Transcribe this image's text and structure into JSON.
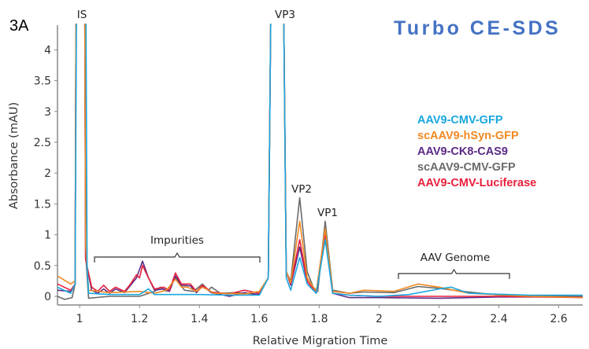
{
  "panel_label": "3A",
  "chart_data": {
    "type": "line",
    "title": "Turbo CE-SDS",
    "xlabel": "Relative Migration Time",
    "ylabel": "Absorbance (mAU)",
    "xlim": [
      0.926,
      2.68
    ],
    "ylim": [
      -0.14,
      4.4
    ],
    "xticks": [
      1,
      1.2,
      1.4,
      1.6,
      1.8,
      2,
      2.2,
      2.4,
      2.6
    ],
    "xtick_labels": [
      "1",
      "1.2",
      "1.4",
      "1.6",
      "1.8",
      "2",
      "2.2",
      "2.4",
      "2.6"
    ],
    "yticks": [
      0,
      0.5,
      1,
      1.5,
      2,
      2.5,
      3,
      3.5,
      4
    ],
    "ytick_labels": [
      "0",
      "0.5",
      "1",
      "1.5",
      "2",
      "2.5",
      "3",
      "3.5",
      "4"
    ],
    "grid": false,
    "legend_position": "right",
    "annotations": {
      "is": "IS",
      "vp3": "VP3",
      "vp2": "VP2",
      "vp1": "VP1",
      "impurities": "Impurities",
      "genome": "AAV Genome"
    },
    "series": [
      {
        "name": "scAAV9-CMV-GFP",
        "color": "#6b6b6b",
        "points": [
          [
            0.926,
            0.0
          ],
          [
            0.95,
            -0.05
          ],
          [
            0.975,
            -0.02
          ],
          [
            0.985,
            0.2
          ],
          [
            0.99,
            8
          ],
          [
            1.015,
            8
          ],
          [
            1.02,
            0.7
          ],
          [
            1.03,
            -0.03
          ],
          [
            1.1,
            0.0
          ],
          [
            1.2,
            0.0
          ],
          [
            1.25,
            0.08
          ],
          [
            1.27,
            0.15
          ],
          [
            1.29,
            0.08
          ],
          [
            1.32,
            0.3
          ],
          [
            1.35,
            0.1
          ],
          [
            1.38,
            0.08
          ],
          [
            1.41,
            0.2
          ],
          [
            1.43,
            0.1
          ],
          [
            1.44,
            0.15
          ],
          [
            1.47,
            0.05
          ],
          [
            1.52,
            0.06
          ],
          [
            1.6,
            0.03
          ],
          [
            1.63,
            0.3
          ],
          [
            1.645,
            8
          ],
          [
            1.675,
            8
          ],
          [
            1.69,
            0.4
          ],
          [
            1.705,
            0.25
          ],
          [
            1.735,
            1.6
          ],
          [
            1.76,
            0.4
          ],
          [
            1.78,
            0.15
          ],
          [
            1.795,
            0.08
          ],
          [
            1.82,
            1.22
          ],
          [
            1.845,
            0.1
          ],
          [
            1.9,
            0.05
          ],
          [
            1.95,
            0.07
          ],
          [
            2.05,
            0.06
          ],
          [
            2.13,
            0.16
          ],
          [
            2.2,
            0.13
          ],
          [
            2.28,
            0.08
          ],
          [
            2.4,
            0.02
          ],
          [
            2.68,
            0.0
          ]
        ]
      },
      {
        "name": "AAV9-CK8-CAS9",
        "color": "#5b2a86",
        "points": [
          [
            0.926,
            0.1
          ],
          [
            0.97,
            0.08
          ],
          [
            0.985,
            0.2
          ],
          [
            0.99,
            8
          ],
          [
            1.015,
            8
          ],
          [
            1.02,
            0.6
          ],
          [
            1.04,
            0.1
          ],
          [
            1.06,
            0.05
          ],
          [
            1.08,
            0.12
          ],
          [
            1.1,
            0.05
          ],
          [
            1.12,
            0.12
          ],
          [
            1.15,
            0.06
          ],
          [
            1.17,
            0.18
          ],
          [
            1.19,
            0.3
          ],
          [
            1.21,
            0.57
          ],
          [
            1.23,
            0.3
          ],
          [
            1.25,
            0.1
          ],
          [
            1.28,
            0.12
          ],
          [
            1.3,
            0.08
          ],
          [
            1.32,
            0.33
          ],
          [
            1.34,
            0.18
          ],
          [
            1.37,
            0.17
          ],
          [
            1.39,
            0.06
          ],
          [
            1.41,
            0.17
          ],
          [
            1.44,
            0.06
          ],
          [
            1.5,
            0.0
          ],
          [
            1.55,
            0.06
          ],
          [
            1.6,
            0.03
          ],
          [
            1.63,
            0.3
          ],
          [
            1.645,
            8
          ],
          [
            1.675,
            8
          ],
          [
            1.69,
            0.4
          ],
          [
            1.705,
            0.18
          ],
          [
            1.735,
            0.8
          ],
          [
            1.76,
            0.25
          ],
          [
            1.79,
            0.05
          ],
          [
            1.82,
            0.95
          ],
          [
            1.845,
            0.05
          ],
          [
            1.9,
            -0.02
          ],
          [
            2.0,
            -0.02
          ],
          [
            2.2,
            -0.03
          ],
          [
            2.4,
            -0.01
          ],
          [
            2.68,
            -0.01
          ]
        ]
      },
      {
        "name": "AAV9-CMV-Luciferase",
        "color": "#e8203c",
        "points": [
          [
            0.926,
            0.2
          ],
          [
            0.97,
            0.1
          ],
          [
            0.985,
            0.2
          ],
          [
            0.99,
            8
          ],
          [
            1.015,
            8
          ],
          [
            1.02,
            0.6
          ],
          [
            1.04,
            0.15
          ],
          [
            1.06,
            0.08
          ],
          [
            1.08,
            0.18
          ],
          [
            1.1,
            0.08
          ],
          [
            1.12,
            0.15
          ],
          [
            1.15,
            0.08
          ],
          [
            1.17,
            0.2
          ],
          [
            1.19,
            0.35
          ],
          [
            1.2,
            0.3
          ],
          [
            1.21,
            0.5
          ],
          [
            1.23,
            0.3
          ],
          [
            1.25,
            0.12
          ],
          [
            1.28,
            0.15
          ],
          [
            1.3,
            0.1
          ],
          [
            1.32,
            0.38
          ],
          [
            1.34,
            0.2
          ],
          [
            1.37,
            0.2
          ],
          [
            1.39,
            0.08
          ],
          [
            1.41,
            0.18
          ],
          [
            1.44,
            0.07
          ],
          [
            1.5,
            0.04
          ],
          [
            1.55,
            0.1
          ],
          [
            1.6,
            0.05
          ],
          [
            1.63,
            0.3
          ],
          [
            1.645,
            8
          ],
          [
            1.675,
            8
          ],
          [
            1.69,
            0.4
          ],
          [
            1.705,
            0.2
          ],
          [
            1.735,
            0.92
          ],
          [
            1.76,
            0.25
          ],
          [
            1.79,
            0.05
          ],
          [
            1.82,
            1.0
          ],
          [
            1.845,
            0.05
          ],
          [
            1.9,
            0.02
          ],
          [
            2.0,
            0.0
          ],
          [
            2.2,
            0.0
          ],
          [
            2.4,
            0.0
          ],
          [
            2.68,
            -0.02
          ]
        ]
      },
      {
        "name": "scAAV9-hSyn-GFP",
        "color": "#f08a24",
        "points": [
          [
            0.926,
            0.33
          ],
          [
            0.97,
            0.2
          ],
          [
            0.985,
            0.25
          ],
          [
            0.99,
            8
          ],
          [
            1.015,
            8
          ],
          [
            1.02,
            0.85
          ],
          [
            1.03,
            0.1
          ],
          [
            1.1,
            0.06
          ],
          [
            1.2,
            0.08
          ],
          [
            1.25,
            0.05
          ],
          [
            1.29,
            0.1
          ],
          [
            1.32,
            0.28
          ],
          [
            1.34,
            0.15
          ],
          [
            1.36,
            0.15
          ],
          [
            1.39,
            0.08
          ],
          [
            1.41,
            0.15
          ],
          [
            1.45,
            0.05
          ],
          [
            1.55,
            0.04
          ],
          [
            1.6,
            0.08
          ],
          [
            1.63,
            0.3
          ],
          [
            1.645,
            8
          ],
          [
            1.675,
            8
          ],
          [
            1.69,
            0.4
          ],
          [
            1.705,
            0.22
          ],
          [
            1.735,
            1.22
          ],
          [
            1.76,
            0.3
          ],
          [
            1.79,
            0.08
          ],
          [
            1.82,
            1.1
          ],
          [
            1.845,
            0.08
          ],
          [
            1.9,
            0.05
          ],
          [
            1.95,
            0.1
          ],
          [
            2.05,
            0.08
          ],
          [
            2.13,
            0.2
          ],
          [
            2.2,
            0.15
          ],
          [
            2.3,
            0.05
          ],
          [
            2.5,
            0.0
          ],
          [
            2.68,
            -0.02
          ]
        ]
      },
      {
        "name": "AAV9-CMV-GFP",
        "color": "#1aa7e0",
        "points": [
          [
            0.926,
            0.15
          ],
          [
            0.97,
            0.05
          ],
          [
            0.985,
            0.2
          ],
          [
            0.993,
            8
          ],
          [
            1.018,
            8
          ],
          [
            1.025,
            0.5
          ],
          [
            1.03,
            0.05
          ],
          [
            1.1,
            0.03
          ],
          [
            1.2,
            0.03
          ],
          [
            1.23,
            0.12
          ],
          [
            1.25,
            0.03
          ],
          [
            1.4,
            0.03
          ],
          [
            1.5,
            0.02
          ],
          [
            1.6,
            0.02
          ],
          [
            1.63,
            0.3
          ],
          [
            1.645,
            8
          ],
          [
            1.675,
            8
          ],
          [
            1.69,
            0.3
          ],
          [
            1.705,
            0.1
          ],
          [
            1.735,
            0.63
          ],
          [
            1.76,
            0.2
          ],
          [
            1.79,
            0.05
          ],
          [
            1.82,
            0.92
          ],
          [
            1.845,
            0.05
          ],
          [
            1.9,
            0.02
          ],
          [
            2.0,
            0.0
          ],
          [
            2.1,
            0.03
          ],
          [
            2.2,
            0.12
          ],
          [
            2.24,
            0.15
          ],
          [
            2.3,
            0.05
          ],
          [
            2.5,
            0.02
          ],
          [
            2.68,
            0.02
          ]
        ]
      }
    ]
  }
}
